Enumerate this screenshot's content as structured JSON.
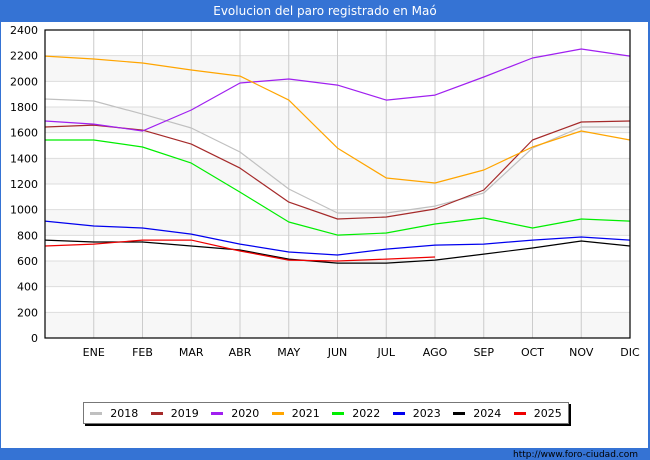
{
  "title": "Evolucion del paro registrado en Maó",
  "footer_url": "http://www.foro-ciudad.com",
  "chart_data": {
    "type": "line",
    "title": "Evolucion del paro registrado en Maó",
    "xlabel": "",
    "ylabel": "",
    "categories": [
      "",
      "ENE",
      "FEB",
      "MAR",
      "ABR",
      "MAY",
      "JUN",
      "JUL",
      "AGO",
      "SEP",
      "OCT",
      "NOV",
      "DIC"
    ],
    "yticks": [
      0,
      200,
      400,
      600,
      800,
      1000,
      1200,
      1400,
      1600,
      1800,
      2000,
      2200,
      2400
    ],
    "ylim": [
      0,
      2400
    ],
    "grid": true,
    "legend_position": "bottom",
    "series": [
      {
        "name": "2018",
        "color": "#c0c0c0",
        "values": [
          1862,
          1847,
          1745,
          1636,
          1449,
          1161,
          974,
          974,
          1028,
          1130,
          1480,
          1644,
          1644
        ]
      },
      {
        "name": "2019",
        "color": "#a52a2a",
        "values": [
          1644,
          1659,
          1620,
          1511,
          1324,
          1059,
          927,
          943,
          1005,
          1153,
          1543,
          1683,
          1691
        ]
      },
      {
        "name": "2020",
        "color": "#a020f0",
        "values": [
          1691,
          1667,
          1613,
          1777,
          1987,
          2018,
          1971,
          1854,
          1893,
          2034,
          2182,
          2252,
          2197
        ]
      },
      {
        "name": "2021",
        "color": "#ffa500",
        "values": [
          2197,
          2174,
          2143,
          2088,
          2041,
          1854,
          1480,
          1247,
          1208,
          1309,
          1488,
          1613,
          1543
        ]
      },
      {
        "name": "2022",
        "color": "#00ee00",
        "values": [
          1543,
          1543,
          1488,
          1363,
          1137,
          904,
          802,
          818,
          888,
          935,
          857,
          927,
          911
        ]
      },
      {
        "name": "2023",
        "color": "#0000ee",
        "values": [
          911,
          873,
          857,
          810,
          732,
          670,
          647,
          693,
          724,
          732,
          763,
          787,
          763
        ]
      },
      {
        "name": "2024",
        "color": "#000000",
        "values": [
          763,
          748,
          748,
          717,
          686,
          615,
          584,
          584,
          607,
          654,
          701,
          756,
          717
        ]
      },
      {
        "name": "2025",
        "color": "#ee0000",
        "values": [
          717,
          732,
          763,
          763,
          678,
          607,
          600,
          615,
          631
        ]
      }
    ]
  }
}
